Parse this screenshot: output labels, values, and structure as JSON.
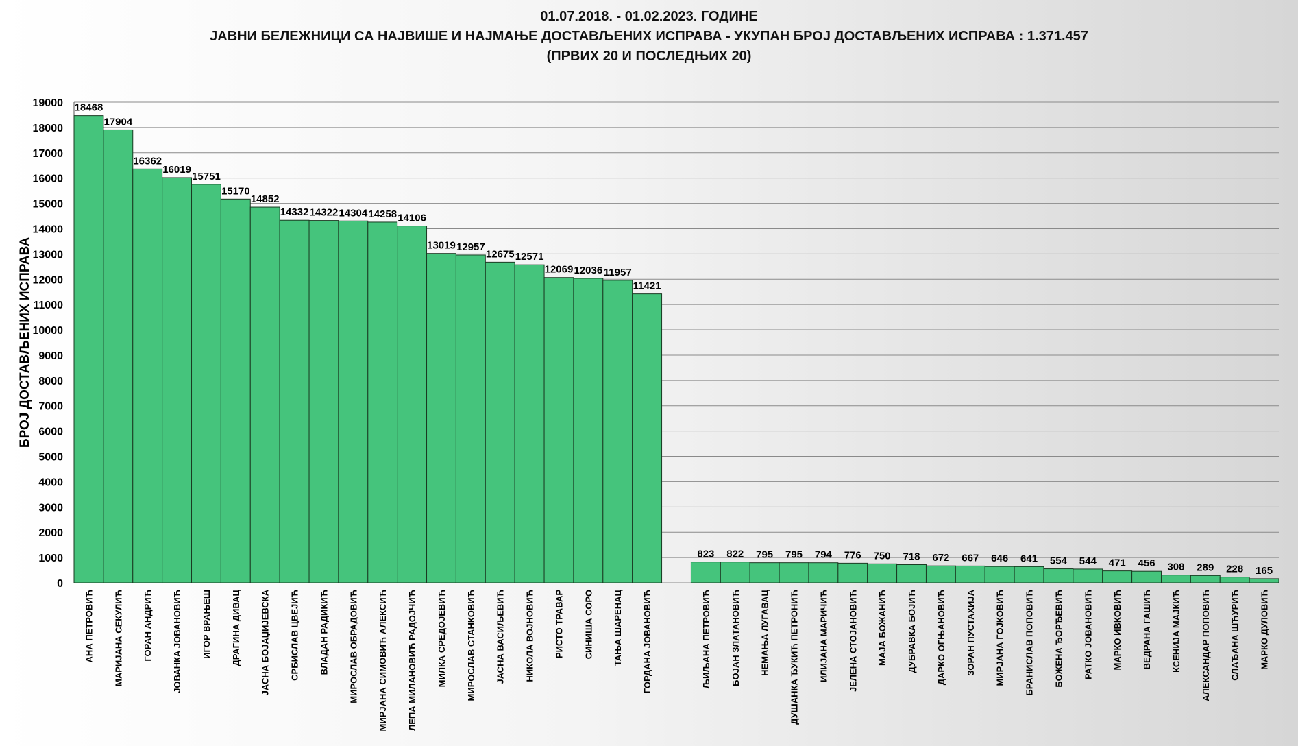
{
  "title_lines": [
    "01.07.2018.  - 01.02.2023.  ГОДИНЕ",
    "ЈАВНИ БЕЛЕЖНИЦИ СА НАЈВИШЕ И НАЈМАЊЕ ДОСТАВЉЕНИХ ИСПРАВА - УКУПАН БРОЈ ДОСТАВЉЕНИХ ИСПРАВА : 1.371.457",
    "(ПРВИХ 20 И ПОСЛЕДЊИХ 20)"
  ],
  "colors": {
    "bar_fill": "#45c47c",
    "bar_stroke": "#1a3a22",
    "gridline": "#8a8a8a"
  },
  "chart_data": {
    "type": "bar",
    "title": "01.07.2018.  - 01.02.2023.  ГОДИНЕ",
    "subtitle": "ЈАВНИ БЕЛЕЖНИЦИ СА НАЈВИШЕ И НАЈМАЊЕ ДОСТАВЉЕНИХ ИСПРАВА - УКУПАН БРОЈ ДОСТАВЉЕНИХ ИСПРАВА : 1.371.457 (ПРВИХ 20 И ПОСЛЕДЊИХ 20)",
    "xlabel": "",
    "ylabel": "БРОЈ ДОСТАВЉЕНИХ ИСПРАВА",
    "ylim": [
      0,
      19000
    ],
    "yticks": [
      0,
      1000,
      2000,
      3000,
      4000,
      5000,
      6000,
      7000,
      8000,
      9000,
      10000,
      11000,
      12000,
      13000,
      14000,
      15000,
      16000,
      17000,
      18000,
      19000
    ],
    "grid": true,
    "legend": "none",
    "categories": [
      "АНА ПЕТРОВИЋ",
      "МАРИЈАНА СЕКУЛИЋ",
      "ГОРАН АНДРИЋ",
      "ЈОВАНКА ЈОВАНОВИЋ",
      "ИГОР ВРАЊЕШ",
      "ДРАГИНА ДИВАЦ",
      "ЈАСНА БОЈАЏИЈЕВСКА",
      "СРБИСЛАВ ЦВЕЈИЋ",
      "ВЛАДАН РАДИКИЋ",
      "МИРОСЛАВ ОБРАДОВИЋ",
      "МИРЈАНА СИМОВИЋ АЛЕКСИЋ",
      "ЛЕПА МИЛАНОВИЋ РАДОЈЧИЋ",
      "МИЛКА СРЕДОЈЕВИЋ",
      "МИРОСЛАВ СТАНКОВИЋ",
      "ЈАСНА ВАСИЉЕВИЋ",
      "НИКОЛА ВОЈНОВИЋ",
      "РИСТО ТРАВАР",
      "СИНИША СОРО",
      "ТАЊА ШАРЕНАЦ",
      "ГОРДАНА ЈОВАНОВИЋ",
      "",
      "ЉИЉАНА ПЕТРОВИЋ",
      "БОЈАН ЗЛАТАНОВИЋ",
      "НЕМАЊА ЛУГАВАЦ",
      "ДУШАНКА ЂУКИЋ ПЕТРОНИЋ",
      "ИЛИЈАНА МАРИЧИЋ",
      "ЈЕЛЕНА СТОЈАНОВИЋ",
      "МАЈА БОЖАНИЋ",
      "ДУБРАВКА БОЈИЋ",
      "ДАРКО ОГЊАНОВИЋ",
      "ЗОРАН ПУСТАХИЈА",
      "МИРЈАНА ГОЈКОВИЋ",
      "БРАНИСЛАВ ПОПОВИЋ",
      "БОЖЕНА ЂОРЂЕВИЋ",
      "РАТКО ЈОВАНОВИЋ",
      "МАРКО ИВКОВИЋ",
      "ВЕДРАНА ГАШИЋ",
      "КСЕНИЈА МАЈКИЋ",
      "АЛЕКСАНДАР ПОПОВИЋ",
      "СЛАЂАНА ШЋУРИЋ",
      "МАРКО ДУЛОВИЋ"
    ],
    "values": [
      18468,
      17904,
      16362,
      16019,
      15751,
      15170,
      14852,
      14332,
      14322,
      14304,
      14258,
      14106,
      13019,
      12957,
      12675,
      12571,
      12069,
      12036,
      11957,
      11421,
      null,
      823,
      822,
      795,
      795,
      794,
      776,
      750,
      718,
      672,
      667,
      646,
      641,
      554,
      544,
      471,
      456,
      308,
      289,
      228,
      165
    ]
  }
}
